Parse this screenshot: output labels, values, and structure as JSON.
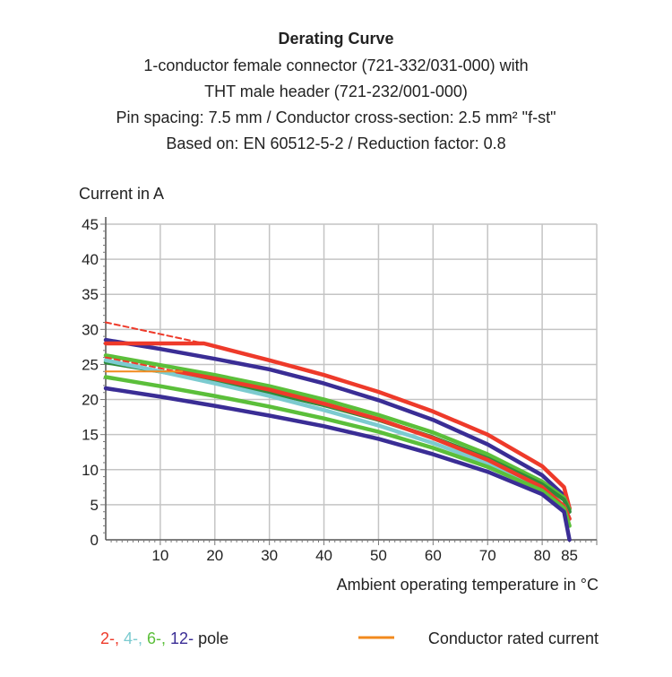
{
  "chart_data": {
    "type": "line",
    "title": "Derating Curve",
    "subtitle_lines": [
      "1-conductor female connector (721-332/031-000) with",
      "THT male header (721-232/001-000)",
      "Pin spacing: 7.5 mm / Conductor cross-section: 2.5 mm² \"f-st\"",
      "Based on: EN 60512-5-2 / Reduction factor: 0.8"
    ],
    "ylabel": "Current in A",
    "xlabel": "Ambient operating temperature in °C",
    "xlim": [
      0,
      90
    ],
    "ylim": [
      0,
      45
    ],
    "grid": true,
    "x_ticks": [
      10,
      20,
      30,
      40,
      50,
      60,
      70,
      80,
      85
    ],
    "y_ticks": [
      0,
      5,
      10,
      15,
      20,
      25,
      30,
      35,
      40,
      45
    ],
    "series": [
      {
        "name": "12-pole upper",
        "color": "#3a2d95",
        "dashed": false,
        "points": [
          [
            0,
            28.5
          ],
          [
            10,
            27.2
          ],
          [
            20,
            25.8
          ],
          [
            30,
            24.3
          ],
          [
            40,
            22.3
          ],
          [
            50,
            19.9
          ],
          [
            60,
            17.1
          ],
          [
            70,
            13.6
          ],
          [
            80,
            9.2
          ],
          [
            84,
            6.3
          ],
          [
            85,
            4.5
          ]
        ]
      },
      {
        "name": "2-pole upper",
        "color": "#ee3a2a",
        "dashed": false,
        "points": [
          [
            0,
            28
          ],
          [
            18,
            28
          ],
          [
            30,
            25.6
          ],
          [
            40,
            23.5
          ],
          [
            50,
            21.1
          ],
          [
            60,
            18.3
          ],
          [
            70,
            15
          ],
          [
            80,
            10.5
          ],
          [
            84,
            7.5
          ],
          [
            85,
            4.5
          ]
        ]
      },
      {
        "name": "2-pole upper dashed",
        "color": "#ee3a2a",
        "dashed": true,
        "points": [
          [
            0,
            31
          ],
          [
            18,
            28
          ]
        ]
      },
      {
        "name": "6-pole a",
        "color": "#5bbf3a",
        "dashed": false,
        "points": [
          [
            0,
            26.3
          ],
          [
            10,
            24.9
          ],
          [
            20,
            23.5
          ],
          [
            30,
            21.9
          ],
          [
            40,
            20
          ],
          [
            50,
            17.8
          ],
          [
            60,
            15.3
          ],
          [
            70,
            12.2
          ],
          [
            80,
            8.3
          ],
          [
            84,
            6
          ],
          [
            85,
            4.3
          ]
        ]
      },
      {
        "name": "6-pole b",
        "color": "#2e8b3a",
        "dashed": false,
        "points": [
          [
            0,
            25.3
          ],
          [
            10,
            24
          ],
          [
            20,
            22.6
          ],
          [
            30,
            21
          ],
          [
            40,
            19.2
          ],
          [
            50,
            17.1
          ],
          [
            60,
            14.6
          ],
          [
            70,
            11.6
          ],
          [
            80,
            7.9
          ],
          [
            84,
            5.7
          ],
          [
            85,
            4
          ]
        ]
      },
      {
        "name": "4-pole",
        "color": "#7ccbd0",
        "dashed": false,
        "points": [
          [
            0,
            25.6
          ],
          [
            10,
            24
          ],
          [
            20,
            22.3
          ],
          [
            30,
            20.5
          ],
          [
            40,
            18.5
          ],
          [
            50,
            16.3
          ],
          [
            60,
            13.8
          ],
          [
            70,
            10.9
          ],
          [
            80,
            7.3
          ],
          [
            84,
            4.8
          ],
          [
            85,
            3
          ]
        ]
      },
      {
        "name": "2-pole lower",
        "color": "#ee3a2a",
        "dashed": false,
        "points": [
          [
            13,
            24
          ],
          [
            20,
            23
          ],
          [
            30,
            21.4
          ],
          [
            40,
            19.4
          ],
          [
            50,
            17.2
          ],
          [
            60,
            14.5
          ],
          [
            70,
            11.4
          ],
          [
            80,
            7.5
          ],
          [
            84,
            4.8
          ],
          [
            85,
            3
          ]
        ]
      },
      {
        "name": "2-pole lower dashed",
        "color": "#ee3a2a",
        "dashed": true,
        "points": [
          [
            0,
            26
          ],
          [
            13,
            24
          ]
        ]
      },
      {
        "name": "6-pole c",
        "color": "#5bbf3a",
        "dashed": false,
        "points": [
          [
            0,
            23.2
          ],
          [
            10,
            21.9
          ],
          [
            20,
            20.5
          ],
          [
            30,
            19
          ],
          [
            40,
            17.3
          ],
          [
            50,
            15.4
          ],
          [
            60,
            13.1
          ],
          [
            70,
            10.4
          ],
          [
            80,
            7
          ],
          [
            84,
            4.5
          ],
          [
            85,
            2
          ]
        ]
      },
      {
        "name": "12-pole lower",
        "color": "#3a2d95",
        "dashed": false,
        "points": [
          [
            0,
            21.6
          ],
          [
            10,
            20.4
          ],
          [
            20,
            19.1
          ],
          [
            30,
            17.7
          ],
          [
            40,
            16.2
          ],
          [
            50,
            14.4
          ],
          [
            60,
            12.2
          ],
          [
            70,
            9.7
          ],
          [
            80,
            6.5
          ],
          [
            84,
            4
          ],
          [
            85,
            0
          ]
        ]
      },
      {
        "name": "Conductor rated current",
        "color": "#f28a1e",
        "dashed": false,
        "points": [
          [
            0,
            24
          ],
          [
            14,
            24
          ]
        ]
      }
    ],
    "legend": {
      "placement": "bottom",
      "poles": [
        {
          "label": "2-,",
          "color": "#ee3a2a"
        },
        {
          "label": " 4-,",
          "color": "#7ccbd0"
        },
        {
          "label": " 6-,",
          "color": "#5bbf3a"
        },
        {
          "label": " 12-",
          "color": "#3a2d95"
        },
        {
          "label": " pole",
          "color": "#222222"
        }
      ],
      "rated_label": "Conductor rated current",
      "rated_color": "#f28a1e"
    }
  }
}
